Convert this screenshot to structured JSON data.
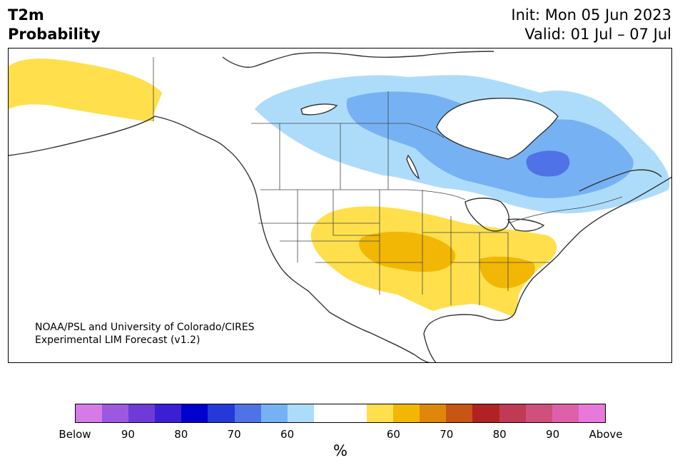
{
  "title": {
    "line1": "T2m",
    "line2": "Probability",
    "init": "Init: Mon 05 Jun 2023",
    "valid": "Valid: 01 Jul – 07 Jul"
  },
  "credit": {
    "line1": "NOAA/PSL and University of Colorado/CIRES",
    "line2": "Experimental LIM Forecast (v1.2)"
  },
  "colorbar": {
    "unit": "%",
    "colors": [
      "#d67ae8",
      "#9c58e0",
      "#6e3ad8",
      "#3b1fd2",
      "#0000cc",
      "#2538d8",
      "#4f73e6",
      "#76b2f3",
      "#addcfb",
      "#ffffff",
      "#ffffff",
      "#ffe04c",
      "#f2b705",
      "#de870b",
      "#c75514",
      "#b12322",
      "#c13a55",
      "#cf4f7d",
      "#dc61a9",
      "#e878da"
    ],
    "tick_labels": [
      "Below",
      "90",
      "80",
      "70",
      "60",
      "60",
      "70",
      "80",
      "90",
      "Above"
    ]
  },
  "legend_classes": {
    "below_60": "#addcfb",
    "below_70": "#76b2f3",
    "below_80": "#4f73e6",
    "above_60": "#ffe04c",
    "above_70": "#f2b705"
  }
}
